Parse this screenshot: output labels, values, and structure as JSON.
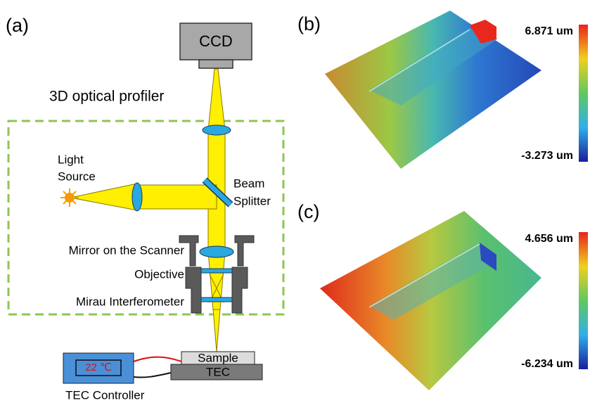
{
  "panel_a": {
    "label": "(a)",
    "title": "3D optical profiler",
    "ccd": "CCD",
    "light_source": [
      "Light",
      "Source"
    ],
    "beam_splitter": [
      "Beam",
      "Splitter"
    ],
    "mirror": "Mirror on the Scanner",
    "objective": "Objective",
    "mirau": "Mirau Interferometer",
    "sample": "Sample",
    "tec": "TEC",
    "temperature": "22 ℃",
    "controller": "TEC Controller"
  },
  "panel_b": {
    "label": "(b)",
    "colorbar_max": "6.871 um",
    "colorbar_min": "-3.273 um"
  },
  "panel_c": {
    "label": "(c)",
    "colorbar_max": "4.656 um",
    "colorbar_min": "-6.234 um"
  }
}
